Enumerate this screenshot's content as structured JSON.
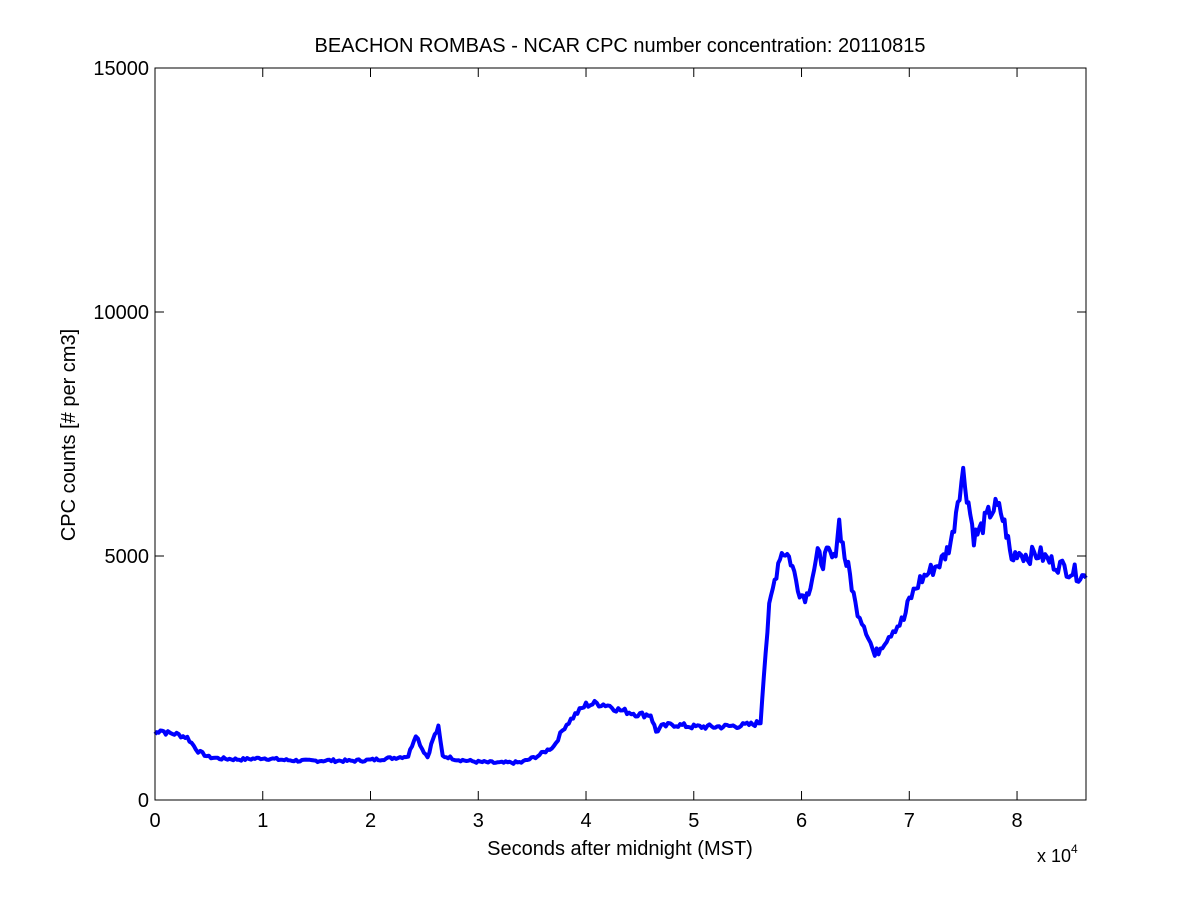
{
  "chart_data": {
    "type": "line",
    "title": "BEACHON ROMBAS - NCAR CPC number concentration: 20110815",
    "xlabel": "Seconds after midnight (MST)",
    "ylabel": "CPC counts [# per cm3]",
    "x_multiplier_label": "x 10",
    "x_multiplier_exponent": "4",
    "xlim": [
      0,
      86400
    ],
    "ylim": [
      0,
      15000
    ],
    "x_ticks": [
      0,
      10000,
      20000,
      30000,
      40000,
      50000,
      60000,
      70000,
      80000
    ],
    "x_tick_labels": [
      "0",
      "1",
      "2",
      "3",
      "4",
      "5",
      "6",
      "7",
      "8"
    ],
    "y_ticks": [
      0,
      5000,
      10000,
      15000
    ],
    "y_tick_labels": [
      "0",
      "5000",
      "10000",
      "15000"
    ],
    "grid": false,
    "line_color": "#0000ff",
    "series": [
      {
        "x": [
          0,
          500,
          1000,
          2000,
          3000,
          4000,
          5000,
          6000,
          8000,
          10000,
          12000,
          14000,
          16000,
          18000,
          20000,
          22000,
          23500,
          24200,
          24800,
          25300,
          25800,
          26300,
          26700,
          27200,
          28000,
          30000,
          32000,
          34000,
          35500,
          37000,
          38000,
          39000,
          40000,
          41000,
          42000,
          43000,
          44000,
          45000,
          46000,
          46500,
          47000,
          48000,
          50000,
          52000,
          54000,
          55500,
          56200,
          56500,
          57000,
          57500,
          58000,
          58500,
          59000,
          59500,
          60000,
          60500,
          61000,
          61500,
          62000,
          62500,
          63000,
          63500,
          64000,
          64500,
          65000,
          66000,
          66800,
          67500,
          68500,
          69500,
          70000,
          71000,
          72000,
          73000,
          73500,
          74000,
          74500,
          75000,
          75500,
          76000,
          76500,
          77000,
          77500,
          78000,
          78500,
          79000,
          79500,
          80000,
          81000,
          82000,
          83000,
          84000,
          85000,
          86400
        ],
        "y": [
          1350,
          1450,
          1380,
          1350,
          1280,
          1000,
          880,
          850,
          830,
          860,
          820,
          800,
          810,
          800,
          820,
          860,
          900,
          1350,
          1050,
          880,
          1250,
          1480,
          900,
          880,
          830,
          780,
          760,
          770,
          900,
          1100,
          1500,
          1750,
          1950,
          1980,
          1950,
          1850,
          1800,
          1750,
          1750,
          1400,
          1500,
          1550,
          1500,
          1500,
          1520,
          1550,
          1600,
          2600,
          3900,
          4500,
          5050,
          5100,
          4900,
          4500,
          4200,
          4200,
          4600,
          5000,
          4900,
          5050,
          4900,
          5700,
          5000,
          4600,
          4000,
          3500,
          2950,
          3200,
          3500,
          3700,
          4100,
          4500,
          4700,
          4900,
          5100,
          5400,
          6200,
          6700,
          6100,
          5400,
          5500,
          5700,
          5900,
          6000,
          5900,
          5500,
          4900,
          5100,
          5000,
          5050,
          4900,
          4800,
          4700,
          4550
        ]
      }
    ]
  }
}
